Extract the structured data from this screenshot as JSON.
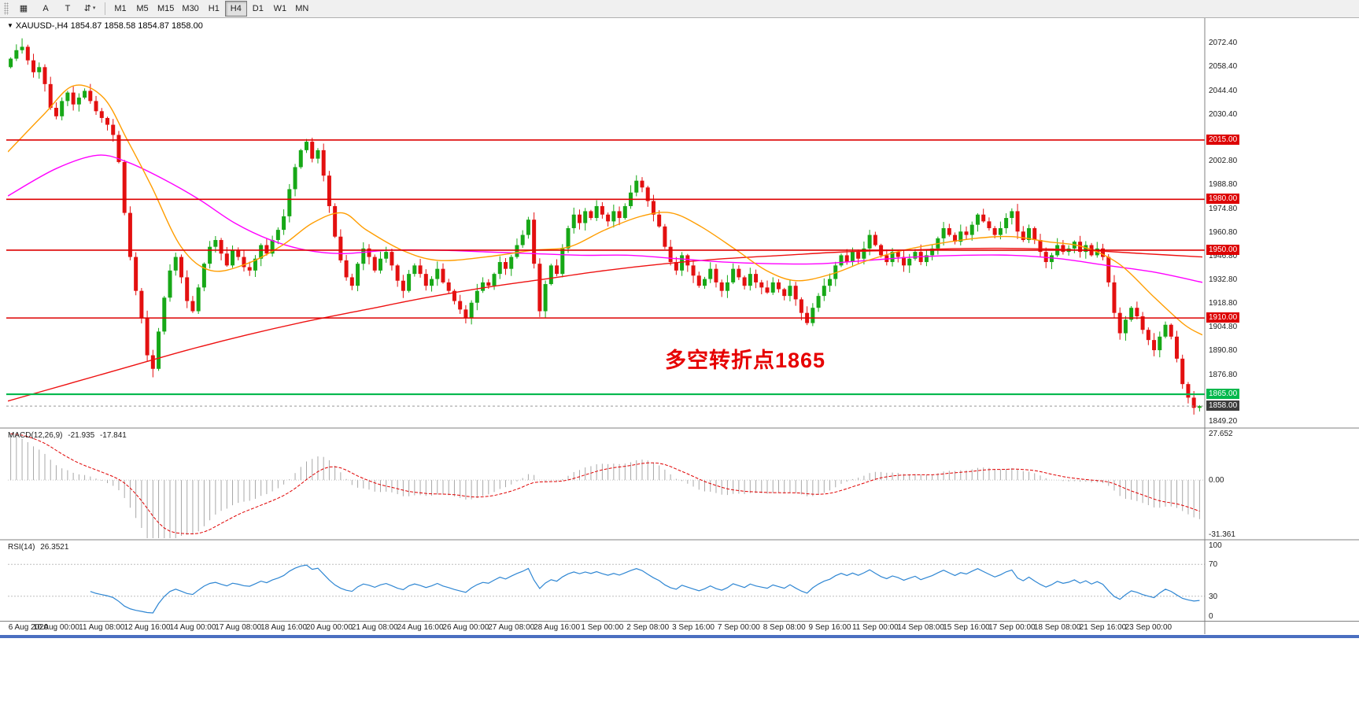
{
  "toolbar": {
    "tools": [
      {
        "name": "chart-grid-icon",
        "label": "▦"
      },
      {
        "name": "font-tool-icon",
        "label": "A"
      },
      {
        "name": "text-tool-icon",
        "label": "T"
      },
      {
        "name": "line-tools-dropdown-icon",
        "label": "⇵",
        "caret": "▾"
      }
    ],
    "timeframes": [
      "M1",
      "M5",
      "M15",
      "M30",
      "H1",
      "H4",
      "D1",
      "W1",
      "MN"
    ],
    "active_timeframe": "H4"
  },
  "chart": {
    "title": "XAUUSD-,H4 1854.87 1858.58 1854.87 1858.00",
    "annotation": {
      "text": "多空转折点1865",
      "color": "#e60000"
    },
    "price_range": [
      1846,
      2086
    ],
    "y_axis_labels": [
      "2072.40",
      "2058.40",
      "2044.40",
      "2030.40",
      "2002.80",
      "1988.80",
      "1974.80",
      "1960.80",
      "1946.80",
      "1932.80",
      "1918.80",
      "1904.80",
      "1890.80",
      "1876.80",
      "1849.20"
    ],
    "levels": [
      {
        "price": 2015.0,
        "label": "2015.00",
        "color": "#dd0000"
      },
      {
        "price": 1980.0,
        "label": "1980.00",
        "color": "#dd0000"
      },
      {
        "price": 1950.0,
        "label": "1950.00",
        "color": "#dd0000"
      },
      {
        "price": 1910.0,
        "label": "1910.00",
        "color": "#dd0000"
      },
      {
        "price": 1865.0,
        "label": "1865.00",
        "color": "#00b84c"
      }
    ],
    "current_price": {
      "price": 1858.0,
      "label": "1858.00",
      "box_color": "#3c3c3c"
    }
  },
  "macd": {
    "label": "MACD(12,26,9)",
    "value_main": "-21.935",
    "value_signal": "-17.841",
    "axis_labels": [
      "27.652",
      "0.00",
      "-31.361"
    ],
    "range": [
      -31.361,
      27.652
    ]
  },
  "rsi": {
    "label": "RSI(14)",
    "value": "26.3521",
    "axis_labels": [
      "100",
      "70",
      "30",
      "0"
    ],
    "guide_levels": [
      70,
      30
    ]
  },
  "chart_data": {
    "type": "candlestick",
    "symbol": "XAUUSD",
    "timeframe": "H4",
    "title": "XAUUSD H4 with MACD(12,26,9) and RSI(14)",
    "first_open": 2058,
    "closes": [
      2063,
      2068,
      2070,
      2062,
      2055,
      2058,
      2048,
      2034,
      2029,
      2038,
      2043,
      2036,
      2040,
      2044,
      2038,
      2032,
      2028,
      2024,
      2018,
      2002,
      1972,
      1946,
      1926,
      1910,
      1888,
      1880,
      1902,
      1922,
      1938,
      1946,
      1934,
      1920,
      1914,
      1928,
      1942,
      1952,
      1956,
      1948,
      1941,
      1950,
      1946,
      1940,
      1938,
      1945,
      1953,
      1948,
      1956,
      1962,
      1970,
      1986,
      1999,
      2009,
      2014,
      2004,
      2009,
      1994,
      1976,
      1958,
      1944,
      1934,
      1929,
      1942,
      1951,
      1946,
      1938,
      1945,
      1949,
      1941,
      1932,
      1926,
      1936,
      1941,
      1936,
      1929,
      1933,
      1939,
      1931,
      1926,
      1920,
      1915,
      1910,
      1919,
      1926,
      1931,
      1929,
      1936,
      1943,
      1939,
      1946,
      1953,
      1959,
      1968,
      1942,
      1914,
      1930,
      1941,
      1936,
      1951,
      1963,
      1971,
      1966,
      1973,
      1969,
      1976,
      1971,
      1967,
      1973,
      1969,
      1976,
      1984,
      1991,
      1987,
      1979,
      1971,
      1964,
      1952,
      1943,
      1938,
      1947,
      1941,
      1935,
      1929,
      1933,
      1939,
      1931,
      1926,
      1931,
      1939,
      1934,
      1929,
      1936,
      1931,
      1928,
      1925,
      1931,
      1927,
      1923,
      1929,
      1921,
      1913,
      1907,
      1916,
      1923,
      1929,
      1933,
      1941,
      1947,
      1943,
      1949,
      1945,
      1951,
      1959,
      1953,
      1947,
      1943,
      1949,
      1946,
      1941,
      1945,
      1949,
      1943,
      1947,
      1951,
      1957,
      1963,
      1959,
      1955,
      1961,
      1959,
      1965,
      1971,
      1967,
      1963,
      1959,
      1963,
      1969,
      1973,
      1961,
      1956,
      1963,
      1956,
      1949,
      1943,
      1947,
      1953,
      1949,
      1951,
      1955,
      1949,
      1953,
      1947,
      1951,
      1946,
      1931,
      1913,
      1901,
      1909,
      1916,
      1911,
      1903,
      1897,
      1891,
      1899,
      1906,
      1899,
      1886,
      1871,
      1863,
      1857,
      1858
    ],
    "overrides": {
      "2": {
        "high": 2075.0
      },
      "25": {
        "low": 1875.0
      },
      "52": {
        "high": 2015.6
      },
      "209": {
        "high": 1858.58,
        "low": 1854.87
      }
    },
    "moving_averages": [
      {
        "name": "ma-slow",
        "color": "#ee1111",
        "points": [
          [
            0,
            1861
          ],
          [
            0.05,
            1871
          ],
          [
            0.1,
            1881
          ],
          [
            0.15,
            1891
          ],
          [
            0.2,
            1900
          ],
          [
            0.25,
            1908
          ],
          [
            0.3,
            1915
          ],
          [
            0.35,
            1922
          ],
          [
            0.4,
            1928
          ],
          [
            0.45,
            1933
          ],
          [
            0.5,
            1938
          ],
          [
            0.55,
            1942
          ],
          [
            0.6,
            1945
          ],
          [
            0.65,
            1947
          ],
          [
            0.7,
            1949
          ],
          [
            0.75,
            1950
          ],
          [
            0.8,
            1951
          ],
          [
            0.85,
            1951
          ],
          [
            0.9,
            1950
          ],
          [
            0.95,
            1948
          ],
          [
            1,
            1946
          ]
        ]
      },
      {
        "name": "ma-mid",
        "color": "#ff00ff",
        "points": [
          [
            0,
            1982
          ],
          [
            0.04,
            1998
          ],
          [
            0.075,
            2006
          ],
          [
            0.1,
            2002
          ],
          [
            0.13,
            1992
          ],
          [
            0.16,
            1980
          ],
          [
            0.19,
            1966
          ],
          [
            0.22,
            1956
          ],
          [
            0.25,
            1950
          ],
          [
            0.28,
            1948
          ],
          [
            0.32,
            1950
          ],
          [
            0.36,
            1950
          ],
          [
            0.4,
            1949
          ],
          [
            0.44,
            1948
          ],
          [
            0.48,
            1947
          ],
          [
            0.52,
            1947
          ],
          [
            0.56,
            1945
          ],
          [
            0.6,
            1943
          ],
          [
            0.64,
            1942
          ],
          [
            0.68,
            1942
          ],
          [
            0.72,
            1944
          ],
          [
            0.76,
            1946
          ],
          [
            0.8,
            1947
          ],
          [
            0.84,
            1947
          ],
          [
            0.88,
            1945
          ],
          [
            0.92,
            1941
          ],
          [
            0.96,
            1937
          ],
          [
            1,
            1931
          ]
        ]
      },
      {
        "name": "ma-fast",
        "color": "#ff9d00",
        "points": [
          [
            0,
            2008
          ],
          [
            0.03,
            2030
          ],
          [
            0.055,
            2047
          ],
          [
            0.08,
            2040
          ],
          [
            0.1,
            2015
          ],
          [
            0.12,
            1988
          ],
          [
            0.145,
            1952
          ],
          [
            0.17,
            1938
          ],
          [
            0.2,
            1942
          ],
          [
            0.23,
            1953
          ],
          [
            0.255,
            1966
          ],
          [
            0.28,
            1972
          ],
          [
            0.3,
            1962
          ],
          [
            0.33,
            1950
          ],
          [
            0.36,
            1944
          ],
          [
            0.4,
            1946
          ],
          [
            0.44,
            1950
          ],
          [
            0.47,
            1952
          ],
          [
            0.5,
            1962
          ],
          [
            0.53,
            1970
          ],
          [
            0.555,
            1972
          ],
          [
            0.58,
            1964
          ],
          [
            0.61,
            1950
          ],
          [
            0.635,
            1938
          ],
          [
            0.66,
            1932
          ],
          [
            0.69,
            1936
          ],
          [
            0.72,
            1944
          ],
          [
            0.75,
            1950
          ],
          [
            0.78,
            1954
          ],
          [
            0.81,
            1957
          ],
          [
            0.84,
            1958
          ],
          [
            0.87,
            1955
          ],
          [
            0.9,
            1952
          ],
          [
            0.93,
            1942
          ],
          [
            0.96,
            1922
          ],
          [
            0.985,
            1906
          ],
          [
            1,
            1900
          ]
        ]
      }
    ],
    "x_labels": [
      "6 Aug 2020",
      "10 Aug 00:00",
      "11 Aug 08:00",
      "12 Aug 16:00",
      "14 Aug 00:00",
      "17 Aug 08:00",
      "18 Aug 16:00",
      "20 Aug 00:00",
      "21 Aug 08:00",
      "24 Aug 16:00",
      "26 Aug 00:00",
      "27 Aug 08:00",
      "28 Aug 16:00",
      "1 Sep 00:00",
      "2 Sep 08:00",
      "3 Sep 16:00",
      "7 Sep 00:00",
      "8 Sep 08:00",
      "9 Sep 16:00",
      "11 Sep 00:00",
      "14 Sep 08:00",
      "15 Sep 16:00",
      "17 Sep 00:00",
      "18 Sep 08:00",
      "21 Sep 16:00",
      "23 Sep 00:00"
    ],
    "colors": {
      "bull": "#17a817",
      "bear": "#e31010",
      "macd_hist": "#a8a8a8",
      "macd_signal": "#e00000",
      "rsi_line": "#2e86d3",
      "bid_line": "#999999"
    }
  }
}
